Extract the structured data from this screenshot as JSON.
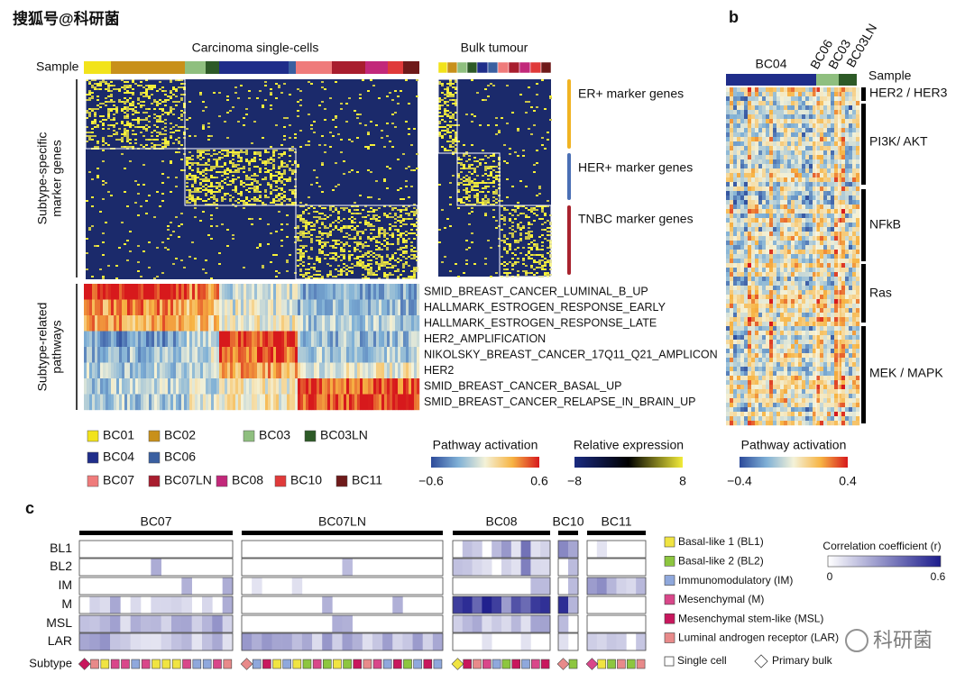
{
  "watermark": "搜狐号@科研菌",
  "panel_a": {
    "title_single": "Carcinoma single-cells",
    "title_bulk": "Bulk tumour",
    "sample_label": "Sample",
    "ylabel_top": [
      "Subtype-specific",
      "marker genes"
    ],
    "ylabel_bottom": [
      "Subtype-related",
      "pathways"
    ],
    "marker_groups": [
      "ER+ marker genes",
      "HER+ marker genes",
      "TNBC marker genes"
    ],
    "pathways": [
      "SMID_BREAST_CANCER_LUMINAL_B_UP",
      "HALLMARK_ESTROGEN_RESPONSE_EARLY",
      "HALLMARK_ESTROGEN_RESPONSE_LATE",
      "HER2_AMPLIFICATION",
      "NIKOLSKY_BREAST_CANCER_17Q11_Q21_AMPLICON",
      "HER2",
      "SMID_BREAST_CANCER_BASAL_UP",
      "SMID_BREAST_CANCER_RELAPSE_IN_BRAIN_UP"
    ],
    "legend": [
      {
        "name": "BC01",
        "color": "#f2e31b"
      },
      {
        "name": "BC02",
        "color": "#c8901a"
      },
      {
        "name": "BC03",
        "color": "#8fbf7f"
      },
      {
        "name": "BC03LN",
        "color": "#2d5a27"
      },
      {
        "name": "BC04",
        "color": "#1f2d8a"
      },
      {
        "name": "BC06",
        "color": "#3a5fa0"
      },
      {
        "name": "BC07",
        "color": "#ef7b7b"
      },
      {
        "name": "BC07LN",
        "color": "#a81d2e"
      },
      {
        "name": "BC08",
        "color": "#c2287a"
      },
      {
        "name": "BC10",
        "color": "#e03a3a"
      },
      {
        "name": "BC11",
        "color": "#6e1a1a"
      }
    ],
    "colorbars": [
      {
        "title": "Pathway activation",
        "min": "−0.6",
        "max": "0.6"
      },
      {
        "title": "Relative expression",
        "min": "−8",
        "max": "8"
      }
    ]
  },
  "panel_b": {
    "label": "b",
    "samples": [
      "BC04",
      "BC06",
      "BC03",
      "BC03LN"
    ],
    "sample_label": "Sample",
    "groups": [
      "HER2 / HER3",
      "PI3K/ AKT",
      "NFkB",
      "Ras",
      "MEK / MAPK"
    ],
    "colorbar": {
      "title": "Pathway activation",
      "min": "−0.4",
      "max": "0.4"
    }
  },
  "panel_c": {
    "label": "c",
    "samples": [
      "BC07",
      "BC07LN",
      "BC08",
      "BC10",
      "BC11"
    ],
    "rows": [
      "BL1",
      "BL2",
      "IM",
      "M",
      "MSL",
      "LAR"
    ],
    "subtype_label": "Subtype",
    "legend": [
      {
        "name": "Basal-like 1 (BL1)",
        "color": "#f0e442"
      },
      {
        "name": "Basal-like 2 (BL2)",
        "color": "#8dc63f"
      },
      {
        "name": "Immunomodulatory (IM)",
        "color": "#8fa8dc"
      },
      {
        "name": "Mesenchymal (M)",
        "color": "#d9478a"
      },
      {
        "name": "Mesenchymal stem-like (MSL)",
        "color": "#c8175d"
      },
      {
        "name": "Luminal androgen receptor (LAR)",
        "color": "#e88a8a"
      }
    ],
    "colorbar": {
      "title": "Correlation coefficient (r)",
      "min": "0",
      "max": "0.6"
    },
    "single_cell": "Single cell",
    "primary_bulk": "Primary bulk"
  },
  "watermark2": "科研菌"
}
